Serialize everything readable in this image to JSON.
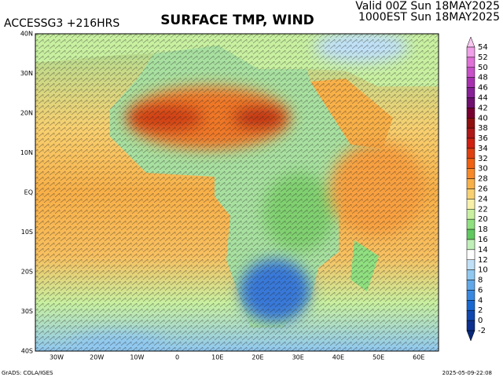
{
  "header": {
    "model": "ACCESSG3 +216HRS",
    "title": "SURFACE TMP, WIND",
    "valid": "Valid 00Z Sun 18MAY2025",
    "local": "1000EST Sun 18MAY2025"
  },
  "latitude_labels": [
    "40N",
    "30N",
    "20N",
    "10N",
    "EQ",
    "10S",
    "20S",
    "30S",
    "40S"
  ],
  "longitude_labels": [
    "30W",
    "20W",
    "10W",
    "0",
    "10E",
    "20E",
    "30E",
    "40E",
    "50E",
    "60E"
  ],
  "colorbar": {
    "labels": [
      54,
      52,
      50,
      48,
      46,
      44,
      42,
      40,
      38,
      36,
      34,
      32,
      30,
      28,
      26,
      24,
      22,
      20,
      18,
      16,
      14,
      12,
      10,
      8,
      6,
      4,
      2,
      0,
      -2
    ],
    "colors": [
      "#f8c8f0",
      "#f0a0e8",
      "#e070d8",
      "#c850c8",
      "#a830b0",
      "#882098",
      "#701070",
      "#780030",
      "#901010",
      "#b01818",
      "#d02010",
      "#e04010",
      "#f06010",
      "#f88828",
      "#f8b048",
      "#f8d070",
      "#f8f0a8",
      "#c8f0a0",
      "#90e080",
      "#60c860",
      "#c0f0b8",
      "#ffffff",
      "#c0e0f8",
      "#90c8f0",
      "#60a8e8",
      "#3888e0",
      "#1868d0",
      "#1048b0",
      "#0c3090",
      "#082878"
    ]
  },
  "footer": {
    "source": "GrADS: COLA/IGES",
    "timestamp": "2025-05-09-22:08"
  }
}
